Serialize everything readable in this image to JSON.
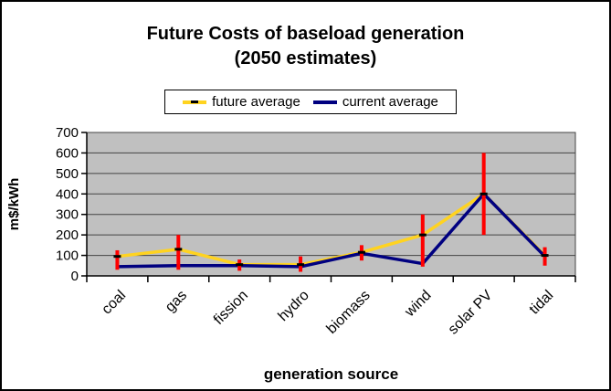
{
  "chart_data": {
    "type": "line",
    "title": "Future Costs of baseload generation (2050 estimates)",
    "title_lines": [
      "Future Costs of baseload generation",
      "(2050 estimates)"
    ],
    "xlabel": "generation source",
    "ylabel": "m$/kWh",
    "categories": [
      "coal",
      "gas",
      "fission",
      "hydro",
      "biomass",
      "wind",
      "solar PV",
      "tidal"
    ],
    "series": [
      {
        "name": "future average",
        "color": "#FFD320",
        "marker_color": "#000000",
        "values": [
          95,
          130,
          55,
          55,
          115,
          200,
          400,
          100
        ],
        "error_bars": {
          "color": "#FF0000",
          "low": [
            30,
            30,
            25,
            20,
            75,
            45,
            200,
            50
          ],
          "high": [
            125,
            200,
            80,
            95,
            150,
            300,
            600,
            140
          ]
        }
      },
      {
        "name": "current average",
        "color": "#000080",
        "values": [
          45,
          50,
          50,
          45,
          110,
          60,
          400,
          95
        ]
      }
    ],
    "ylim": [
      0,
      700
    ],
    "yticks": [
      700,
      600,
      500,
      400,
      300,
      200,
      100,
      0
    ],
    "grid": true,
    "grid_color": "#444444",
    "plot_bg": "#C0C0C0",
    "legend_position": "top"
  }
}
